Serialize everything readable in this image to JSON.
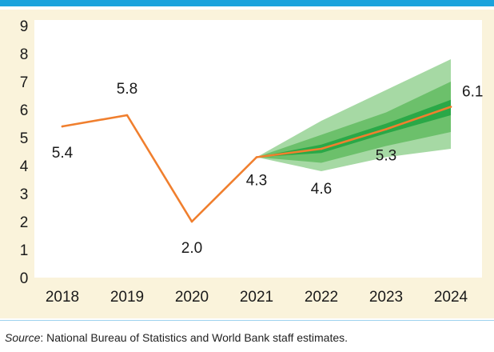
{
  "colors": {
    "top_rule": "#1ba3dc",
    "panel_background": "#faf3db",
    "plot_background": "#ffffff",
    "bottom_rule": "#9fd3ee",
    "line": "#f07f2e",
    "band_outer": "#a6d9a4",
    "band_middle": "#6cc06b",
    "band_inner": "#2aa847"
  },
  "chart_data": {
    "type": "line",
    "categories": [
      "2018",
      "2019",
      "2020",
      "2021",
      "2022",
      "2023",
      "2024"
    ],
    "series": [
      {
        "values": [
          5.4,
          5.8,
          2.0,
          4.3,
          4.6,
          5.3,
          6.1
        ]
      }
    ],
    "data_labels": [
      "5.4",
      "5.8",
      "2.0",
      "4.3",
      "4.6",
      "5.3",
      "6.1"
    ],
    "fan_chart": {
      "categories": [
        "2021",
        "2022",
        "2023",
        "2024"
      ],
      "outer": {
        "upper": [
          4.3,
          5.6,
          6.7,
          7.8
        ],
        "lower": [
          4.3,
          3.8,
          4.3,
          4.6
        ]
      },
      "middle": {
        "upper": [
          4.3,
          5.1,
          5.9,
          7.0
        ],
        "lower": [
          4.3,
          4.1,
          4.7,
          5.2
        ]
      },
      "inner": {
        "upper": [
          4.3,
          4.75,
          5.5,
          6.35
        ],
        "lower": [
          4.3,
          4.45,
          5.15,
          5.8
        ]
      }
    },
    "y_ticks": [
      "0",
      "1",
      "2",
      "3",
      "4",
      "5",
      "6",
      "7",
      "8",
      "9"
    ],
    "ylim": [
      0,
      9
    ],
    "grid": false,
    "legend": "none",
    "title": "",
    "xlabel": "",
    "ylabel": ""
  },
  "source": {
    "label": "Source",
    "text": ": National Bureau of Statistics and World Bank staff estimates."
  }
}
